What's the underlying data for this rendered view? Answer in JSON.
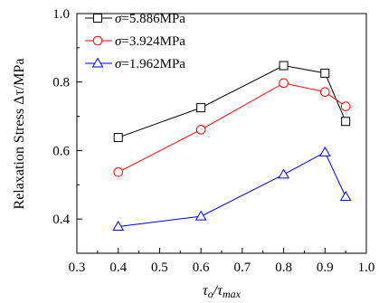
{
  "chart_data": {
    "type": "line",
    "xlabel": "τo/τmax",
    "xlabel_main": "τ",
    "xlabel_sub1": "o",
    "xlabel_mid": "/τ",
    "xlabel_sub2": "max",
    "ylabel": "Relaxation Stress Δτ/MPa",
    "xlim": [
      0.3,
      1.0
    ],
    "ylim": [
      0.3,
      1.0
    ],
    "xticks": [
      "0.3",
      "0.4",
      "0.5",
      "0.6",
      "0.7",
      "0.8",
      "0.9",
      "1.0"
    ],
    "yticks": [
      "0.4",
      "0.6",
      "0.8",
      "1.0"
    ],
    "grid": false,
    "legend_position": "top-left",
    "series": [
      {
        "name": "σ=5.886MPa",
        "sigma_symbol": "σ",
        "sigma_value": "=5.886MPa",
        "color": "#000000",
        "marker": "square",
        "x": [
          0.4,
          0.6,
          0.8,
          0.9,
          0.95
        ],
        "y": [
          0.638,
          0.725,
          0.848,
          0.826,
          0.685
        ]
      },
      {
        "name": "σ=3.924MPa",
        "sigma_symbol": "σ",
        "sigma_value": "=3.924MPa",
        "color": "#ff0000",
        "marker": "circle",
        "x": [
          0.4,
          0.6,
          0.8,
          0.9,
          0.95
        ],
        "y": [
          0.537,
          0.661,
          0.797,
          0.771,
          0.729
        ]
      },
      {
        "name": "σ=1.962MPa",
        "sigma_symbol": "σ",
        "sigma_value": "=1.962MPa",
        "color": "#0000ff",
        "marker": "triangle",
        "x": [
          0.4,
          0.6,
          0.8,
          0.9,
          0.95
        ],
        "y": [
          0.378,
          0.408,
          0.53,
          0.595,
          0.465
        ]
      }
    ]
  }
}
